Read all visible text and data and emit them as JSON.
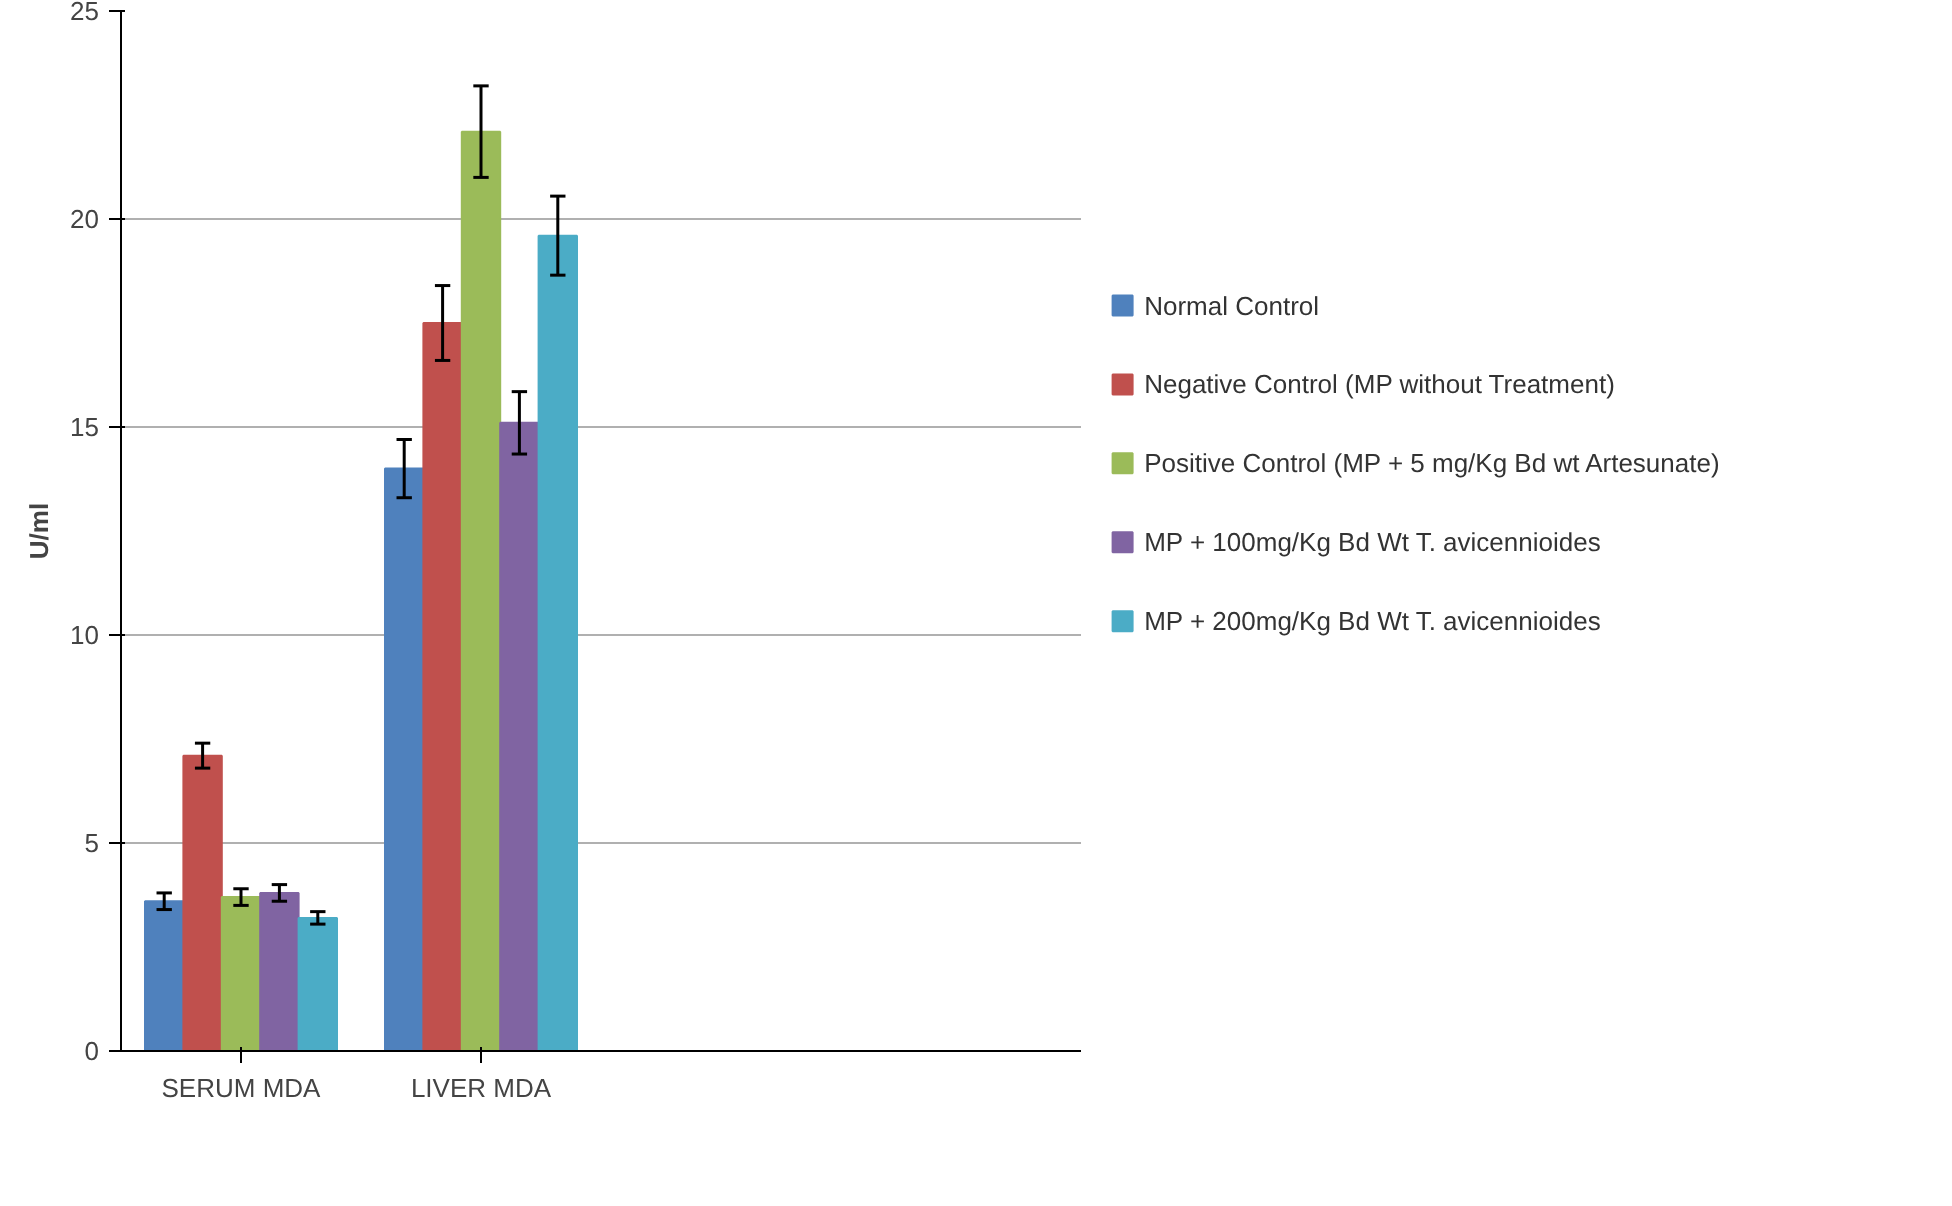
{
  "chart_data": {
    "type": "bar",
    "ylabel": "U/ml",
    "categories": [
      "SERUM MDA",
      "LIVER MDA",
      null,
      null
    ],
    "ylim": [
      0,
      25
    ],
    "yticks": [
      0,
      5,
      10,
      15,
      20,
      25
    ],
    "grid": "y",
    "legend": "right",
    "series": [
      {
        "name": "Normal Control",
        "color": "#4f81bd",
        "values": [
          3.6,
          14.0,
          null,
          null
        ],
        "errors": [
          0.2,
          0.7,
          null,
          null
        ]
      },
      {
        "name": "Negative Control (MP without Treatment)",
        "color": "#c0504d",
        "values": [
          7.1,
          17.5,
          null,
          null
        ],
        "errors": [
          0.3,
          0.9,
          null,
          null
        ]
      },
      {
        "name": "Positive Control (MP + 5 mg/Kg Bd wt Artesunate)",
        "color": "#9bbb59",
        "values": [
          3.7,
          22.1,
          null,
          null
        ],
        "errors": [
          0.2,
          1.1,
          null,
          null
        ]
      },
      {
        "name": "MP + 100mg/Kg Bd Wt T. avicennioides",
        "color": "#8064a2",
        "values": [
          3.8,
          15.1,
          null,
          null
        ],
        "errors": [
          0.2,
          0.75,
          null,
          null
        ]
      },
      {
        "name": "MP + 200mg/Kg Bd Wt T. avicennioides",
        "color": "#4bacc6",
        "values": [
          3.2,
          19.6,
          null,
          null
        ],
        "errors": [
          0.15,
          0.95,
          null,
          null
        ]
      }
    ]
  }
}
